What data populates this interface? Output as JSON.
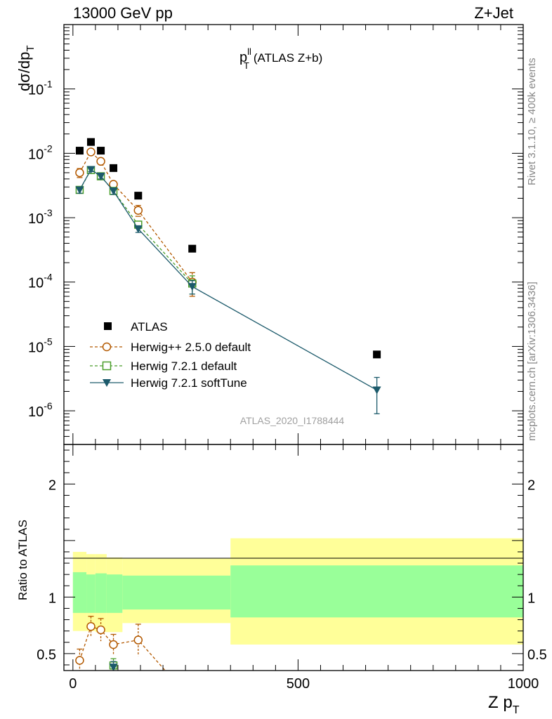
{
  "header": {
    "left": "13000 GeV pp",
    "right": "Z+Jet"
  },
  "side": {
    "rivet": "Rivet 3.1.10, ≥ 400k events",
    "mcplots": "mcplots.cern.ch [arXiv:1306.3436]"
  },
  "analysis_id": "ATLAS_2020_I1788444",
  "colors": {
    "atlas": "#000000",
    "herwigpp": "#b35900",
    "herwig721": "#4a9e2a",
    "softtune": "#1c5a6b",
    "band_outer": "#ffff99",
    "band_inner": "#99ff99"
  },
  "chart_data": [
    {
      "type": "scatter",
      "panel": "main",
      "title": "p_T^ll (ATLAS Z+b)",
      "title_main": "p",
      "title_sup": "ll",
      "title_sub": "T",
      "title_rest": "(ATLAS Z+b)",
      "ylabel": "dσ/dp_T",
      "ylabel_main": "dσ/dp",
      "ylabel_sub": "T",
      "yscale": "log",
      "xlim": [
        -20,
        1000
      ],
      "ylim": [
        3e-07,
        1
      ],
      "ytick_exponents": [
        "-1",
        "-2",
        "-3",
        "-4",
        "-5",
        "-6"
      ],
      "ytick_values": [
        0.1,
        0.01,
        0.001,
        0.0001,
        1e-05,
        1e-06
      ],
      "legend_position": "middle-left",
      "series": [
        {
          "name": "ATLAS",
          "marker": "square-filled",
          "line": "none",
          "x": [
            15,
            40,
            62,
            90,
            145,
            265,
            675
          ],
          "y": [
            0.011,
            0.015,
            0.011,
            0.0059,
            0.0022,
            0.00033,
            7.5e-06
          ],
          "yerr_up": [
            0,
            0,
            0,
            0,
            0,
            0,
            0
          ]
        },
        {
          "name": "Herwig++ 2.5.0 default",
          "marker": "circle-open",
          "line": "dashed",
          "x": [
            15,
            40,
            62,
            90,
            145,
            265
          ],
          "y": [
            0.005,
            0.0105,
            0.0075,
            0.0033,
            0.0013,
            0.0001
          ],
          "yerr_up": [
            0.0008,
            0.0008,
            0.0007,
            0.0004,
            0.00025,
            4e-05
          ]
        },
        {
          "name": "Herwig 7.2.1 default",
          "marker": "square-open",
          "line": "dashed",
          "x": [
            15,
            40,
            62,
            90,
            145,
            265
          ],
          "y": [
            0.0027,
            0.0055,
            0.0044,
            0.0026,
            0.00078,
            9.5e-05
          ],
          "yerr_up": [
            0.0003,
            0.0004,
            0.0004,
            0.0003,
            0.0001,
            3e-05
          ]
        },
        {
          "name": "Herwig 7.2.1 softTune",
          "marker": "triangle-down-filled",
          "line": "solid",
          "x": [
            15,
            40,
            62,
            90,
            145,
            265,
            675
          ],
          "y": [
            0.0027,
            0.0056,
            0.0044,
            0.0026,
            0.00067,
            8.5e-05,
            2.1e-06
          ],
          "yerr_up": [
            0.0003,
            0.0004,
            0.0004,
            0.0003,
            8e-05,
            2e-05,
            1.2e-06
          ]
        }
      ]
    },
    {
      "type": "line",
      "panel": "ratio",
      "ylabel": "Ratio to ATLAS",
      "xlabel": "Z p_T",
      "xlabel_main": "Z p",
      "xlabel_sub": "T",
      "xlim": [
        -20,
        1000
      ],
      "ylim": [
        0.35,
        2.35
      ],
      "xtick_values": [
        0,
        500,
        1000
      ],
      "xtick_labels": [
        "0",
        "500",
        "1000"
      ],
      "ytick_values": [
        0.5,
        1,
        2
      ],
      "ytick_labels": [
        "0.5",
        "1",
        "2"
      ],
      "bins": [
        0,
        30,
        50,
        75,
        110,
        350,
        1000
      ],
      "band_outer_lo": [
        0.7,
        0.7,
        0.69,
        0.69,
        0.77,
        0.58
      ],
      "band_outer_hi": [
        1.4,
        1.38,
        1.38,
        1.35,
        1.34,
        1.52
      ],
      "band_inner_lo": [
        0.86,
        0.86,
        0.86,
        0.86,
        0.89,
        0.82
      ],
      "band_inner_hi": [
        1.22,
        1.2,
        1.21,
        1.2,
        1.19,
        1.28
      ],
      "series": [
        {
          "name": "Herwig++ 2.5.0 default",
          "x": [
            15,
            40,
            62,
            90,
            145,
            205
          ],
          "y": [
            0.44,
            0.74,
            0.71,
            0.58,
            0.62,
            0.35
          ],
          "yerr_up": [
            0.1,
            0.09,
            0.1,
            0.09,
            0.14,
            0
          ]
        },
        {
          "name": "Herwig 7.2.1 default",
          "x": [
            90
          ],
          "y": [
            0.395
          ],
          "yerr_up": [
            0.06
          ]
        },
        {
          "name": "Herwig 7.2.1 softTune",
          "x": [
            90
          ],
          "y": [
            0.38
          ],
          "yerr_up": [
            0.05
          ]
        }
      ]
    }
  ]
}
